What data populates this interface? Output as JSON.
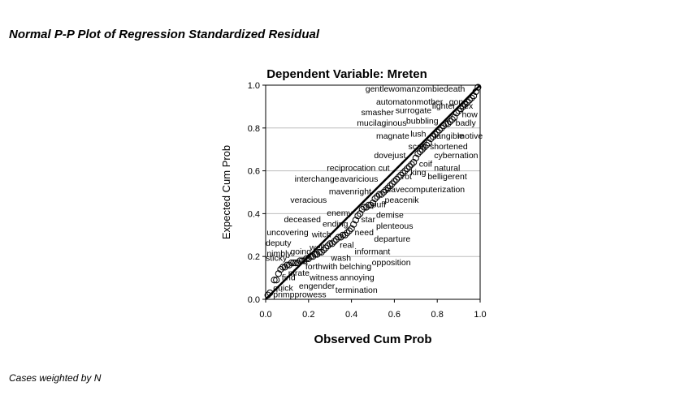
{
  "page": {
    "title": "Normal P-P Plot of Regression Standardized Residual",
    "footnote": "Cases weighted by N"
  },
  "chart_data": {
    "type": "scatter",
    "title": "Dependent Variable: Mreten",
    "xlabel": "Observed Cum Prob",
    "ylabel": "Expected Cum Prob",
    "xlim": [
      0,
      1
    ],
    "ylim": [
      0,
      1
    ],
    "x_ticks": [
      "0.0",
      "0.2",
      "0.4",
      "0.6",
      "0.8",
      "1.0"
    ],
    "y_ticks": [
      "0.0",
      "0.2",
      "0.4",
      "0.6",
      "0.8",
      "1.0"
    ],
    "grid": "horizontal",
    "reference_line": [
      [
        0,
        0
      ],
      [
        1,
        1
      ]
    ],
    "colors": {
      "points": "#000000",
      "line": "#000000",
      "grid": "#bdbdbd"
    },
    "labels": [
      {
        "text": "gentlewomanzombiedeath",
        "x": 0.465,
        "y": 0.985
      },
      {
        "text": "automatonmother",
        "x": 0.515,
        "y": 0.925
      },
      {
        "text": "gone",
        "x": 0.855,
        "y": 0.925
      },
      {
        "text": "fighter",
        "x": 0.775,
        "y": 0.905
      },
      {
        "text": "sex",
        "x": 0.905,
        "y": 0.905
      },
      {
        "text": "smasher",
        "x": 0.445,
        "y": 0.875
      },
      {
        "text": "surrogate",
        "x": 0.605,
        "y": 0.885
      },
      {
        "text": "how",
        "x": 0.915,
        "y": 0.865
      },
      {
        "text": "mucilaginous",
        "x": 0.425,
        "y": 0.825
      },
      {
        "text": "bubbling",
        "x": 0.655,
        "y": 0.835
      },
      {
        "text": "badly",
        "x": 0.885,
        "y": 0.825
      },
      {
        "text": "magnate",
        "x": 0.515,
        "y": 0.765
      },
      {
        "text": "lush",
        "x": 0.675,
        "y": 0.775
      },
      {
        "text": "tangible",
        "x": 0.785,
        "y": 0.765
      },
      {
        "text": "motive",
        "x": 0.895,
        "y": 0.765
      },
      {
        "text": "scab",
        "x": 0.665,
        "y": 0.715
      },
      {
        "text": "shortened",
        "x": 0.765,
        "y": 0.715
      },
      {
        "text": "dovejust",
        "x": 0.505,
        "y": 0.675
      },
      {
        "text": "cybernation",
        "x": 0.785,
        "y": 0.675
      },
      {
        "text": "reciprocation",
        "x": 0.285,
        "y": 0.615
      },
      {
        "text": "cut",
        "x": 0.525,
        "y": 0.615
      },
      {
        "text": "coif",
        "x": 0.715,
        "y": 0.635
      },
      {
        "text": "natural",
        "x": 0.785,
        "y": 0.615
      },
      {
        "text": "king",
        "x": 0.675,
        "y": 0.595
      },
      {
        "text": "rot",
        "x": 0.635,
        "y": 0.575
      },
      {
        "text": "belligerent",
        "x": 0.755,
        "y": 0.575
      },
      {
        "text": "interchange",
        "x": 0.135,
        "y": 0.565
      },
      {
        "text": "avaricious",
        "x": 0.345,
        "y": 0.565
      },
      {
        "text": "maven",
        "x": 0.295,
        "y": 0.505
      },
      {
        "text": "right",
        "x": 0.415,
        "y": 0.505
      },
      {
        "text": "slavecomputerization",
        "x": 0.555,
        "y": 0.515
      },
      {
        "text": "veracious",
        "x": 0.115,
        "y": 0.465
      },
      {
        "text": "peacenik",
        "x": 0.555,
        "y": 0.465
      },
      {
        "text": "puff",
        "x": 0.495,
        "y": 0.445
      },
      {
        "text": "enemy",
        "x": 0.285,
        "y": 0.405
      },
      {
        "text": "demise",
        "x": 0.515,
        "y": 0.395
      },
      {
        "text": "deceased",
        "x": 0.085,
        "y": 0.375
      },
      {
        "text": "ending",
        "x": 0.265,
        "y": 0.355
      },
      {
        "text": "star",
        "x": 0.445,
        "y": 0.375
      },
      {
        "text": "plenteous",
        "x": 0.515,
        "y": 0.345
      },
      {
        "text": "uncovering",
        "x": 0.005,
        "y": 0.315
      },
      {
        "text": "witch",
        "x": 0.215,
        "y": 0.305
      },
      {
        "text": "need",
        "x": 0.415,
        "y": 0.315
      },
      {
        "text": "departure",
        "x": 0.505,
        "y": 0.285
      },
      {
        "text": "deputy",
        "x": 0.0,
        "y": 0.265
      },
      {
        "text": "well",
        "x": 0.205,
        "y": 0.245
      },
      {
        "text": "real",
        "x": 0.345,
        "y": 0.255
      },
      {
        "text": "going",
        "x": 0.115,
        "y": 0.225
      },
      {
        "text": "informant",
        "x": 0.415,
        "y": 0.225
      },
      {
        "text": "nimbly",
        "x": 0.005,
        "y": 0.215
      },
      {
        "text": "sticky",
        "x": 0.0,
        "y": 0.195
      },
      {
        "text": "wash",
        "x": 0.305,
        "y": 0.195
      },
      {
        "text": "opposition",
        "x": 0.495,
        "y": 0.175
      },
      {
        "text": "forthwith",
        "x": 0.185,
        "y": 0.155
      },
      {
        "text": "belching",
        "x": 0.345,
        "y": 0.155
      },
      {
        "text": "pirate",
        "x": 0.105,
        "y": 0.125
      },
      {
        "text": "find",
        "x": 0.075,
        "y": 0.105
      },
      {
        "text": "witness",
        "x": 0.205,
        "y": 0.105
      },
      {
        "text": "annoying",
        "x": 0.345,
        "y": 0.105
      },
      {
        "text": "engender",
        "x": 0.155,
        "y": 0.065
      },
      {
        "text": "quick",
        "x": 0.035,
        "y": 0.055
      },
      {
        "text": "termination",
        "x": 0.325,
        "y": 0.045
      },
      {
        "text": "primpprowess",
        "x": 0.035,
        "y": 0.025
      }
    ],
    "points": [
      [
        0.01,
        0.02
      ],
      [
        0.02,
        0.03
      ],
      [
        0.04,
        0.09
      ],
      [
        0.05,
        0.09
      ],
      [
        0.06,
        0.12
      ],
      [
        0.07,
        0.14
      ],
      [
        0.08,
        0.15
      ],
      [
        0.09,
        0.15
      ],
      [
        0.1,
        0.16
      ],
      [
        0.11,
        0.16
      ],
      [
        0.12,
        0.17
      ],
      [
        0.13,
        0.17
      ],
      [
        0.14,
        0.17
      ],
      [
        0.15,
        0.17
      ],
      [
        0.16,
        0.18
      ],
      [
        0.17,
        0.18
      ],
      [
        0.18,
        0.18
      ],
      [
        0.19,
        0.19
      ],
      [
        0.2,
        0.19
      ],
      [
        0.21,
        0.2
      ],
      [
        0.22,
        0.2
      ],
      [
        0.23,
        0.21
      ],
      [
        0.24,
        0.21
      ],
      [
        0.25,
        0.22
      ],
      [
        0.26,
        0.22
      ],
      [
        0.27,
        0.23
      ],
      [
        0.28,
        0.24
      ],
      [
        0.29,
        0.25
      ],
      [
        0.3,
        0.26
      ],
      [
        0.31,
        0.26
      ],
      [
        0.32,
        0.27
      ],
      [
        0.33,
        0.28
      ],
      [
        0.34,
        0.29
      ],
      [
        0.35,
        0.29
      ],
      [
        0.36,
        0.3
      ],
      [
        0.37,
        0.3
      ],
      [
        0.38,
        0.31
      ],
      [
        0.39,
        0.32
      ],
      [
        0.4,
        0.33
      ],
      [
        0.41,
        0.35
      ],
      [
        0.42,
        0.37
      ],
      [
        0.43,
        0.39
      ],
      [
        0.44,
        0.4
      ],
      [
        0.45,
        0.42
      ],
      [
        0.46,
        0.43
      ],
      [
        0.47,
        0.43
      ],
      [
        0.48,
        0.44
      ],
      [
        0.49,
        0.44
      ],
      [
        0.5,
        0.45
      ],
      [
        0.51,
        0.47
      ],
      [
        0.52,
        0.48
      ],
      [
        0.53,
        0.49
      ],
      [
        0.54,
        0.49
      ],
      [
        0.55,
        0.5
      ],
      [
        0.56,
        0.51
      ],
      [
        0.57,
        0.52
      ],
      [
        0.58,
        0.53
      ],
      [
        0.59,
        0.54
      ],
      [
        0.6,
        0.55
      ],
      [
        0.61,
        0.56
      ],
      [
        0.62,
        0.57
      ],
      [
        0.63,
        0.58
      ],
      [
        0.64,
        0.59
      ],
      [
        0.65,
        0.6
      ],
      [
        0.66,
        0.61
      ],
      [
        0.67,
        0.62
      ],
      [
        0.68,
        0.63
      ],
      [
        0.69,
        0.64
      ],
      [
        0.7,
        0.66
      ],
      [
        0.71,
        0.68
      ],
      [
        0.72,
        0.69
      ],
      [
        0.73,
        0.7
      ],
      [
        0.74,
        0.71
      ],
      [
        0.75,
        0.72
      ],
      [
        0.76,
        0.73
      ],
      [
        0.77,
        0.75
      ],
      [
        0.78,
        0.76
      ],
      [
        0.79,
        0.77
      ],
      [
        0.8,
        0.78
      ],
      [
        0.81,
        0.79
      ],
      [
        0.82,
        0.8
      ],
      [
        0.83,
        0.81
      ],
      [
        0.84,
        0.82
      ],
      [
        0.85,
        0.82
      ],
      [
        0.86,
        0.83
      ],
      [
        0.87,
        0.84
      ],
      [
        0.88,
        0.85
      ],
      [
        0.89,
        0.87
      ],
      [
        0.9,
        0.88
      ],
      [
        0.91,
        0.89
      ],
      [
        0.92,
        0.9
      ],
      [
        0.93,
        0.91
      ],
      [
        0.94,
        0.92
      ],
      [
        0.95,
        0.93
      ],
      [
        0.96,
        0.94
      ],
      [
        0.97,
        0.95
      ],
      [
        0.98,
        0.97
      ],
      [
        0.99,
        0.99
      ]
    ]
  }
}
